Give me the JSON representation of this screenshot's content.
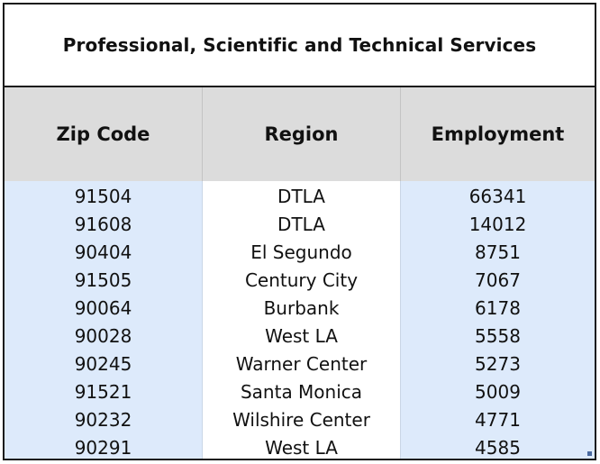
{
  "table": {
    "title": "Professional, Scientific and Technical Services",
    "headers": [
      "Zip Code",
      "Region",
      "Employment"
    ],
    "rows": [
      {
        "zip": "91504",
        "region": "DTLA",
        "employment": "66341"
      },
      {
        "zip": "91608",
        "region": "DTLA",
        "employment": "14012"
      },
      {
        "zip": "90404",
        "region": "El Segundo",
        "employment": "8751"
      },
      {
        "zip": "91505",
        "region": "Century City",
        "employment": "7067"
      },
      {
        "zip": "90064",
        "region": "Burbank",
        "employment": "6178"
      },
      {
        "zip": "90028",
        "region": "West LA",
        "employment": "5558"
      },
      {
        "zip": "90245",
        "region": "Warner Center",
        "employment": "5273"
      },
      {
        "zip": "91521",
        "region": "Santa Monica",
        "employment": "5009"
      },
      {
        "zip": "90232",
        "region": "Wilshire Center",
        "employment": "4771"
      },
      {
        "zip": "90291",
        "region": "West LA",
        "employment": "4585"
      }
    ]
  },
  "colors": {
    "header_bg": "#dcdcdc",
    "stripe_bg": "#ddeafb",
    "border": "#1a1a1a"
  }
}
